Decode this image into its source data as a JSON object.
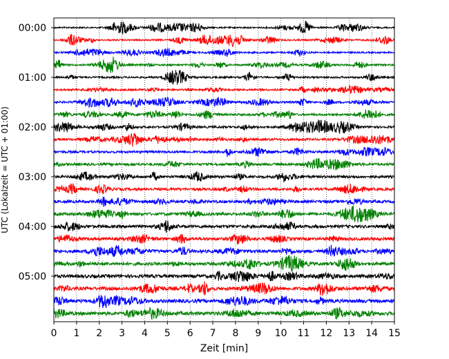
{
  "chart_data": {
    "type": "line",
    "title": "",
    "xlabel": "Zeit  [min]",
    "ylabel": "UTC (Lokalzeit = UTC + 01:00)",
    "xlim": [
      0,
      15
    ],
    "x_ticks": [
      0,
      1,
      2,
      3,
      4,
      5,
      6,
      7,
      8,
      9,
      10,
      11,
      12,
      13,
      14,
      15
    ],
    "x_tick_labels": [
      "0",
      "1",
      "2",
      "3",
      "4",
      "5",
      "6",
      "7",
      "8",
      "9",
      "10",
      "11",
      "12",
      "13",
      "14",
      "15"
    ],
    "y_tick_labels": [
      "00:00",
      "01:00",
      "02:00",
      "03:00",
      "04:00",
      "05:00"
    ],
    "y_tick_rows": [
      0,
      4,
      8,
      12,
      16,
      20
    ],
    "trace_minutes_per_row": 15,
    "row_count": 24,
    "row_colors": [
      "#000000",
      "#ff0000",
      "#0000ff",
      "#008000"
    ],
    "grid": "vertical dotted lines at each minute"
  }
}
